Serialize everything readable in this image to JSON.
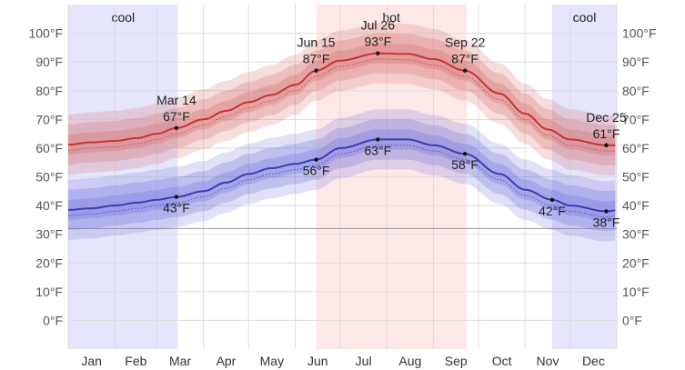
{
  "chart_data": {
    "type": "area",
    "unit": "°F",
    "ylim": [
      -10,
      110
    ],
    "y_ticks": [
      {
        "value": 0,
        "label": "0°F"
      },
      {
        "value": 10,
        "label": "10°F"
      },
      {
        "value": 20,
        "label": "20°F"
      },
      {
        "value": 30,
        "label": "30°F"
      },
      {
        "value": 40,
        "label": "40°F"
      },
      {
        "value": 50,
        "label": "50°F"
      },
      {
        "value": 60,
        "label": "60°F"
      },
      {
        "value": 70,
        "label": "70°F"
      },
      {
        "value": 80,
        "label": "80°F"
      },
      {
        "value": 90,
        "label": "90°F"
      },
      {
        "value": 100,
        "label": "100°F"
      }
    ],
    "months": [
      "Jan",
      "Feb",
      "Mar",
      "Apr",
      "May",
      "Jun",
      "Jul",
      "Aug",
      "Sep",
      "Oct",
      "Nov",
      "Dec"
    ],
    "freezing_line": 32,
    "seasons": [
      {
        "label": "cool",
        "start": "Jan 1",
        "end": "Mar 14",
        "color": "#e5e5fb"
      },
      {
        "label": "hot",
        "start": "Jun 15",
        "end": "Sep 22",
        "color": "#fde8e8"
      },
      {
        "label": "cool",
        "start": "Nov 19",
        "end": "Dec 31",
        "color": "#e5e5fb"
      }
    ],
    "series": [
      {
        "name": "",
        "color": "#c83232",
        "band_color": "#d56a6a",
        "points": [
          {
            "date": "Jan 1",
            "value": 61.2
          },
          {
            "date": "Jan 16",
            "value": 62
          },
          {
            "date": "Feb 1",
            "value": 62.5
          },
          {
            "date": "Feb 16",
            "value": 63.5
          },
          {
            "date": "Mar 1",
            "value": 65
          },
          {
            "date": "Mar 14",
            "value": 67
          },
          {
            "date": "Apr 1",
            "value": 70
          },
          {
            "date": "Apr 16",
            "value": 73
          },
          {
            "date": "May 1",
            "value": 76
          },
          {
            "date": "May 16",
            "value": 78.5
          },
          {
            "date": "Jun 1",
            "value": 82
          },
          {
            "date": "Jun 15",
            "value": 87
          },
          {
            "date": "Jul 1",
            "value": 90.5
          },
          {
            "date": "Jul 26",
            "value": 93
          },
          {
            "date": "Aug 15",
            "value": 92.8
          },
          {
            "date": "Sep 1",
            "value": 91
          },
          {
            "date": "Sep 22",
            "value": 87
          },
          {
            "date": "Oct 15",
            "value": 79
          },
          {
            "date": "Nov 1",
            "value": 72
          },
          {
            "date": "Nov 16",
            "value": 66.5
          },
          {
            "date": "Dec 1",
            "value": 63
          },
          {
            "date": "Dec 25",
            "value": 61
          },
          {
            "date": "Dec 31",
            "value": 61
          }
        ]
      },
      {
        "name": "",
        "color": "#3c3cb4",
        "band_color": "#7070dc",
        "points": [
          {
            "date": "Jan 1",
            "value": 38.5
          },
          {
            "date": "Jan 16",
            "value": 39
          },
          {
            "date": "Feb 1",
            "value": 40
          },
          {
            "date": "Feb 16",
            "value": 41
          },
          {
            "date": "Mar 1",
            "value": 42
          },
          {
            "date": "Mar 14",
            "value": 43
          },
          {
            "date": "Apr 1",
            "value": 45
          },
          {
            "date": "Apr 16",
            "value": 48
          },
          {
            "date": "May 1",
            "value": 51
          },
          {
            "date": "May 16",
            "value": 53
          },
          {
            "date": "Jun 1",
            "value": 54.5
          },
          {
            "date": "Jun 15",
            "value": 56
          },
          {
            "date": "Jul 1",
            "value": 60
          },
          {
            "date": "Jul 26",
            "value": 63
          },
          {
            "date": "Aug 15",
            "value": 63
          },
          {
            "date": "Sep 1",
            "value": 61
          },
          {
            "date": "Sep 22",
            "value": 58
          },
          {
            "date": "Oct 15",
            "value": 51
          },
          {
            "date": "Nov 1",
            "value": 45.5
          },
          {
            "date": "Nov 19",
            "value": 42
          },
          {
            "date": "Dec 1",
            "value": 40
          },
          {
            "date": "Dec 25",
            "value": 38
          },
          {
            "date": "Dec 31",
            "value": 38.3
          }
        ]
      }
    ],
    "annotations": [
      {
        "series": 0,
        "date_label": "Mar 14",
        "value": 67,
        "value_label": "67°F",
        "placement": "above"
      },
      {
        "series": 0,
        "date_label": "Jun 15",
        "value": 87,
        "value_label": "87°F",
        "placement": "above"
      },
      {
        "series": 0,
        "date_label": "Jul 26",
        "value": 93,
        "value_label": "93°F",
        "placement": "above"
      },
      {
        "series": 0,
        "date_label": "Sep 22",
        "value": 87,
        "value_label": "87°F",
        "placement": "above"
      },
      {
        "series": 0,
        "date_label": "Dec 25",
        "value": 61,
        "value_label": "61°F",
        "placement": "above"
      },
      {
        "series": 1,
        "date_label": "Mar 14",
        "value": 43,
        "value_label": "43°F",
        "placement": "below"
      },
      {
        "series": 1,
        "date_label": "Jun 15",
        "value": 56,
        "value_label": "56°F",
        "placement": "below"
      },
      {
        "series": 1,
        "date_label": "Jul 26",
        "value": 63,
        "value_label": "63°F",
        "placement": "below"
      },
      {
        "series": 1,
        "date_label": "Sep 22",
        "value": 58,
        "value_label": "58°F",
        "placement": "below"
      },
      {
        "series": 1,
        "date_label": "Nov 19",
        "value": 42,
        "value_label": "42°F",
        "placement": "below"
      },
      {
        "series": 1,
        "date_label": "Dec 25",
        "value": 38,
        "value_label": "38°F",
        "placement": "below"
      }
    ],
    "grid": true
  }
}
